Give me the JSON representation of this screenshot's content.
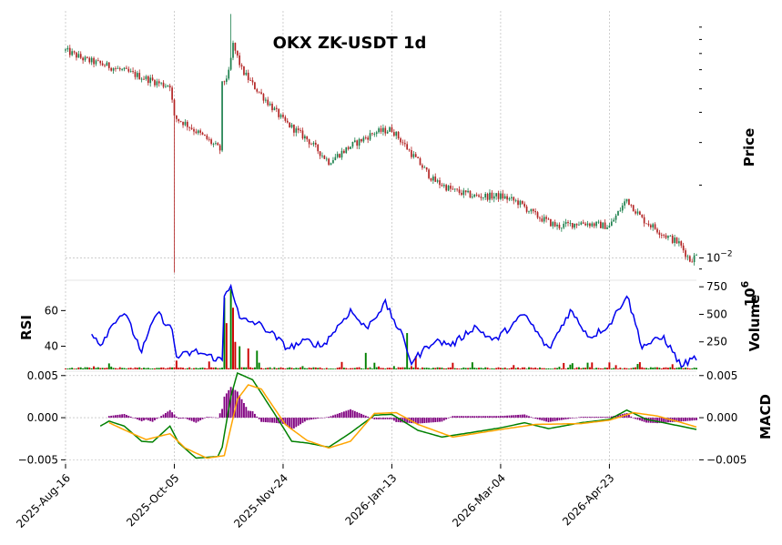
{
  "chart_data": {
    "type": "candlestick",
    "title": "OKX ZK-USDT 1d",
    "x_tick_labels": [
      "2025-Aug-16",
      "2025-Oct-05",
      "2025-Nov-24",
      "2026-Jan-13",
      "2026-Mar-04",
      "2026-Apr-23"
    ],
    "date_range": [
      "2025-08-16",
      "2026-06-02"
    ],
    "colors": {
      "up": "#1a7f4b",
      "down": "#b22222",
      "rsi": "#0000ee",
      "vol_up": "#008000",
      "vol_down": "#cc0000",
      "macd_line": "#008000",
      "signal_line": "#ffa500",
      "hist": "#800080",
      "wick": "#444444"
    },
    "price_panel": {
      "ylabel": "Price",
      "scale": "log",
      "ylim": [
        0.0083,
        0.105
      ],
      "y_tick_labels": [
        "10",
        "−2"
      ],
      "close_keypoints": [
        [
          "2025-08-16",
          0.072
        ],
        [
          "2025-08-25",
          0.066
        ],
        [
          "2025-09-05",
          0.062
        ],
        [
          "2025-09-15",
          0.058
        ],
        [
          "2025-09-25",
          0.054
        ],
        [
          "2025-09-30",
          0.052
        ],
        [
          "2025-10-03",
          0.052
        ],
        [
          "2025-10-05",
          0.038
        ],
        [
          "2025-10-10",
          0.036
        ],
        [
          "2025-10-20",
          0.031
        ],
        [
          "2025-10-26",
          0.028
        ],
        [
          "2025-10-27",
          0.052
        ],
        [
          "2025-10-30",
          0.058
        ],
        [
          "2025-11-01",
          0.076
        ],
        [
          "2025-11-05",
          0.06
        ],
        [
          "2025-11-10",
          0.052
        ],
        [
          "2025-11-18",
          0.043
        ],
        [
          "2025-11-24",
          0.037
        ],
        [
          "2025-12-05",
          0.031
        ],
        [
          "2025-12-15",
          0.025
        ],
        [
          "2025-12-25",
          0.029
        ],
        [
          "2026-01-05",
          0.033
        ],
        [
          "2026-01-13",
          0.034
        ],
        [
          "2026-01-22",
          0.027
        ],
        [
          "2026-02-01",
          0.021
        ],
        [
          "2026-02-10",
          0.019
        ],
        [
          "2026-02-20",
          0.018
        ],
        [
          "2026-03-04",
          0.018
        ],
        [
          "2026-03-12",
          0.017
        ],
        [
          "2026-03-20",
          0.015
        ],
        [
          "2026-03-30",
          0.0135
        ],
        [
          "2026-04-10",
          0.014
        ],
        [
          "2026-04-23",
          0.0135
        ],
        [
          "2026-05-01",
          0.0175
        ],
        [
          "2026-05-08",
          0.0145
        ],
        [
          "2026-05-18",
          0.0125
        ],
        [
          "2026-05-25",
          0.0115
        ],
        [
          "2026-05-30",
          0.0098
        ],
        [
          "2026-06-02",
          0.0102
        ]
      ],
      "spike_lows": [
        [
          "2025-10-05",
          0.0087
        ]
      ],
      "spike_highs": [
        [
          "2025-10-31",
          0.102
        ]
      ]
    },
    "volume_panel": {
      "ylabel": "Volume",
      "unit_label": "10",
      "unit_exponent": "6",
      "ylim": [
        0,
        760
      ],
      "y_tick_labels": [
        "250",
        "500",
        "750"
      ],
      "spikes": [
        [
          "2025-10-06",
          80,
          false
        ],
        [
          "2025-10-28",
          650,
          true
        ],
        [
          "2025-10-29",
          420,
          false
        ],
        [
          "2025-10-31",
          730,
          true
        ],
        [
          "2025-11-01",
          560,
          false
        ],
        [
          "2025-11-02",
          250,
          false
        ],
        [
          "2025-11-04",
          210,
          true
        ],
        [
          "2025-11-08",
          190,
          false
        ],
        [
          "2025-11-12",
          170,
          true
        ],
        [
          "2026-01-01",
          150,
          true
        ],
        [
          "2026-01-20",
          330,
          true
        ],
        [
          "2026-01-24",
          120,
          false
        ]
      ]
    },
    "rsi_panel": {
      "ylabel": "RSI",
      "ylim": [
        27,
        76
      ],
      "y_tick_labels": [
        "40",
        "60"
      ],
      "keypoints": [
        [
          "2025-08-28",
          48
        ],
        [
          "2025-09-01",
          41
        ],
        [
          "2025-09-08",
          55
        ],
        [
          "2025-09-12",
          59
        ],
        [
          "2025-09-20",
          37
        ],
        [
          "2025-09-27",
          59
        ],
        [
          "2025-10-04",
          49
        ],
        [
          "2025-10-06",
          34
        ],
        [
          "2025-10-15",
          37
        ],
        [
          "2025-10-27",
          32
        ],
        [
          "2025-10-28",
          68
        ],
        [
          "2025-10-31",
          75
        ],
        [
          "2025-11-04",
          55
        ],
        [
          "2025-11-12",
          53
        ],
        [
          "2025-11-18",
          48
        ],
        [
          "2025-11-26",
          39
        ],
        [
          "2025-12-05",
          43
        ],
        [
          "2025-12-12",
          40
        ],
        [
          "2025-12-25",
          60
        ],
        [
          "2026-01-01",
          50
        ],
        [
          "2026-01-10",
          64
        ],
        [
          "2026-01-18",
          45
        ],
        [
          "2026-01-22",
          31
        ],
        [
          "2026-02-01",
          43
        ],
        [
          "2026-02-10",
          41
        ],
        [
          "2026-02-20",
          51
        ],
        [
          "2026-03-01",
          43
        ],
        [
          "2026-03-15",
          58
        ],
        [
          "2026-03-26",
          38
        ],
        [
          "2026-04-05",
          60
        ],
        [
          "2026-04-14",
          45
        ],
        [
          "2026-04-23",
          52
        ],
        [
          "2026-05-01",
          69
        ],
        [
          "2026-05-08",
          40
        ],
        [
          "2026-05-18",
          45
        ],
        [
          "2026-05-26",
          29
        ],
        [
          "2026-06-02",
          34
        ]
      ]
    },
    "macd_panel": {
      "ylabel": "MACD",
      "ylim": [
        -0.0055,
        0.0053
      ],
      "y_tick_labels": [
        "−0.005",
        "0.000",
        "0.005"
      ],
      "macd_keypoints": [
        [
          "2025-09-01",
          -0.001
        ],
        [
          "2025-09-05",
          -0.0004
        ],
        [
          "2025-09-12",
          -0.001
        ],
        [
          "2025-09-20",
          -0.0028
        ],
        [
          "2025-09-25",
          -0.0029
        ],
        [
          "2025-10-03",
          -0.001
        ],
        [
          "2025-10-07",
          -0.003
        ],
        [
          "2025-10-15",
          -0.0048
        ],
        [
          "2025-10-25",
          -0.0046
        ],
        [
          "2025-10-27",
          -0.0035
        ],
        [
          "2025-10-31",
          0.0025
        ],
        [
          "2025-11-03",
          0.0053
        ],
        [
          "2025-11-10",
          0.0045
        ],
        [
          "2025-11-20",
          0.0005
        ],
        [
          "2025-11-28",
          -0.0028
        ],
        [
          "2025-12-05",
          -0.003
        ],
        [
          "2025-12-15",
          -0.0035
        ],
        [
          "2025-12-25",
          -0.0018
        ],
        [
          "2026-01-05",
          0.0003
        ],
        [
          "2026-01-13",
          0.0004
        ],
        [
          "2026-01-25",
          -0.0015
        ],
        [
          "2026-02-05",
          -0.0023
        ],
        [
          "2026-02-20",
          -0.0017
        ],
        [
          "2026-03-04",
          -0.0012
        ],
        [
          "2026-03-15",
          -0.0006
        ],
        [
          "2026-03-26",
          -0.0013
        ],
        [
          "2026-04-10",
          -0.0006
        ],
        [
          "2026-04-23",
          -0.0002
        ],
        [
          "2026-05-01",
          0.0009
        ],
        [
          "2026-05-10",
          -0.0002
        ],
        [
          "2026-05-20",
          -0.0007
        ],
        [
          "2026-06-02",
          -0.0014
        ]
      ],
      "signal_keypoints": [
        [
          "2025-09-05",
          -0.0006
        ],
        [
          "2025-09-15",
          -0.0018
        ],
        [
          "2025-09-22",
          -0.0026
        ],
        [
          "2025-10-03",
          -0.0019
        ],
        [
          "2025-10-10",
          -0.0036
        ],
        [
          "2025-10-20",
          -0.0048
        ],
        [
          "2025-10-28",
          -0.0045
        ],
        [
          "2025-11-03",
          0.0022
        ],
        [
          "2025-11-08",
          0.0039
        ],
        [
          "2025-11-14",
          0.0034
        ],
        [
          "2025-11-25",
          -0.0008
        ],
        [
          "2025-12-05",
          -0.0027
        ],
        [
          "2025-12-15",
          -0.0036
        ],
        [
          "2025-12-25",
          -0.0028
        ],
        [
          "2026-01-05",
          0.0005
        ],
        [
          "2026-01-15",
          0.0006
        ],
        [
          "2026-01-25",
          -0.0008
        ],
        [
          "2026-02-10",
          -0.0023
        ],
        [
          "2026-03-04",
          -0.0014
        ],
        [
          "2026-03-20",
          -0.0008
        ],
        [
          "2026-04-10",
          -0.0007
        ],
        [
          "2026-04-23",
          -0.0003
        ],
        [
          "2026-05-04",
          0.0006
        ],
        [
          "2026-05-15",
          0.0002
        ],
        [
          "2026-05-25",
          -0.0005
        ],
        [
          "2026-06-02",
          -0.0011
        ]
      ]
    }
  }
}
